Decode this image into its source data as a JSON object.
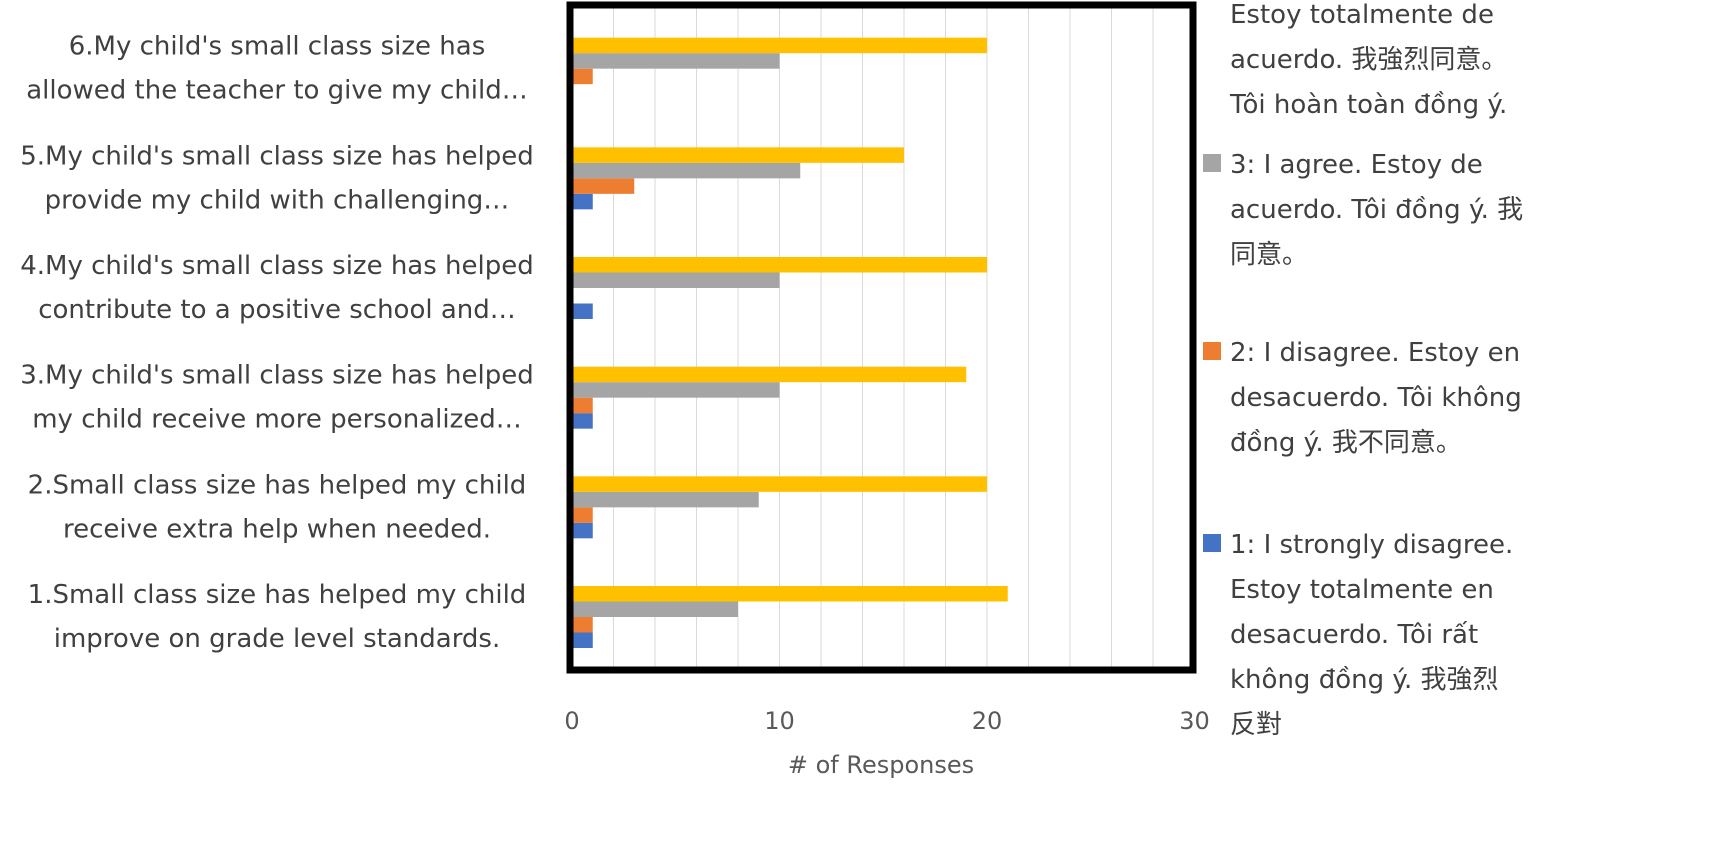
{
  "chart_data": {
    "type": "bar",
    "orientation": "horizontal",
    "xlabel": "# of Responses",
    "xlim": [
      0,
      30
    ],
    "xticks": [
      "0",
      "10",
      "20",
      "30"
    ],
    "grid": true,
    "legend_position": "right",
    "categories": [
      [
        "1.Small class size has helped my child",
        "improve on grade level standards."
      ],
      [
        "2.Small class size has helped my child",
        "receive extra help when needed."
      ],
      [
        "3.My child's small class size has helped",
        "my child receive more personalized…"
      ],
      [
        "4.My child's small class size has helped",
        "contribute to a positive school and…"
      ],
      [
        "5.My child's small class size has helped",
        "provide my child with challenging…"
      ],
      [
        "6.My child's small class size has",
        "allowed the teacher to give my child…"
      ]
    ],
    "series": [
      {
        "name": [
          "1: I strongly disagree.",
          "Estoy totalmente en",
          "desacuerdo. Tôi rất",
          "không đồng ý. 我強烈",
          "反對"
        ],
        "color": "#4472C4",
        "values": [
          1,
          1,
          1,
          1,
          1,
          0
        ]
      },
      {
        "name": [
          "2: I disagree. Estoy en",
          "desacuerdo.  Tôi không",
          "đồng ý.  我不同意。"
        ],
        "color": "#ED7D31",
        "values": [
          1,
          1,
          1,
          0,
          3,
          1
        ]
      },
      {
        "name": [
          "3: I agree. Estoy de",
          "acuerdo. Tôi đồng ý.  我",
          "同意。"
        ],
        "color": "#A5A5A5",
        "values": [
          8,
          9,
          10,
          10,
          11,
          10
        ]
      },
      {
        "name": [
          "Estoy totalmente de",
          "acuerdo. 我強烈同意。",
          "Tôi hoàn toàn đồng ý."
        ],
        "color": "#FFC000",
        "values": [
          21,
          20,
          19,
          20,
          16,
          20
        ]
      }
    ]
  }
}
